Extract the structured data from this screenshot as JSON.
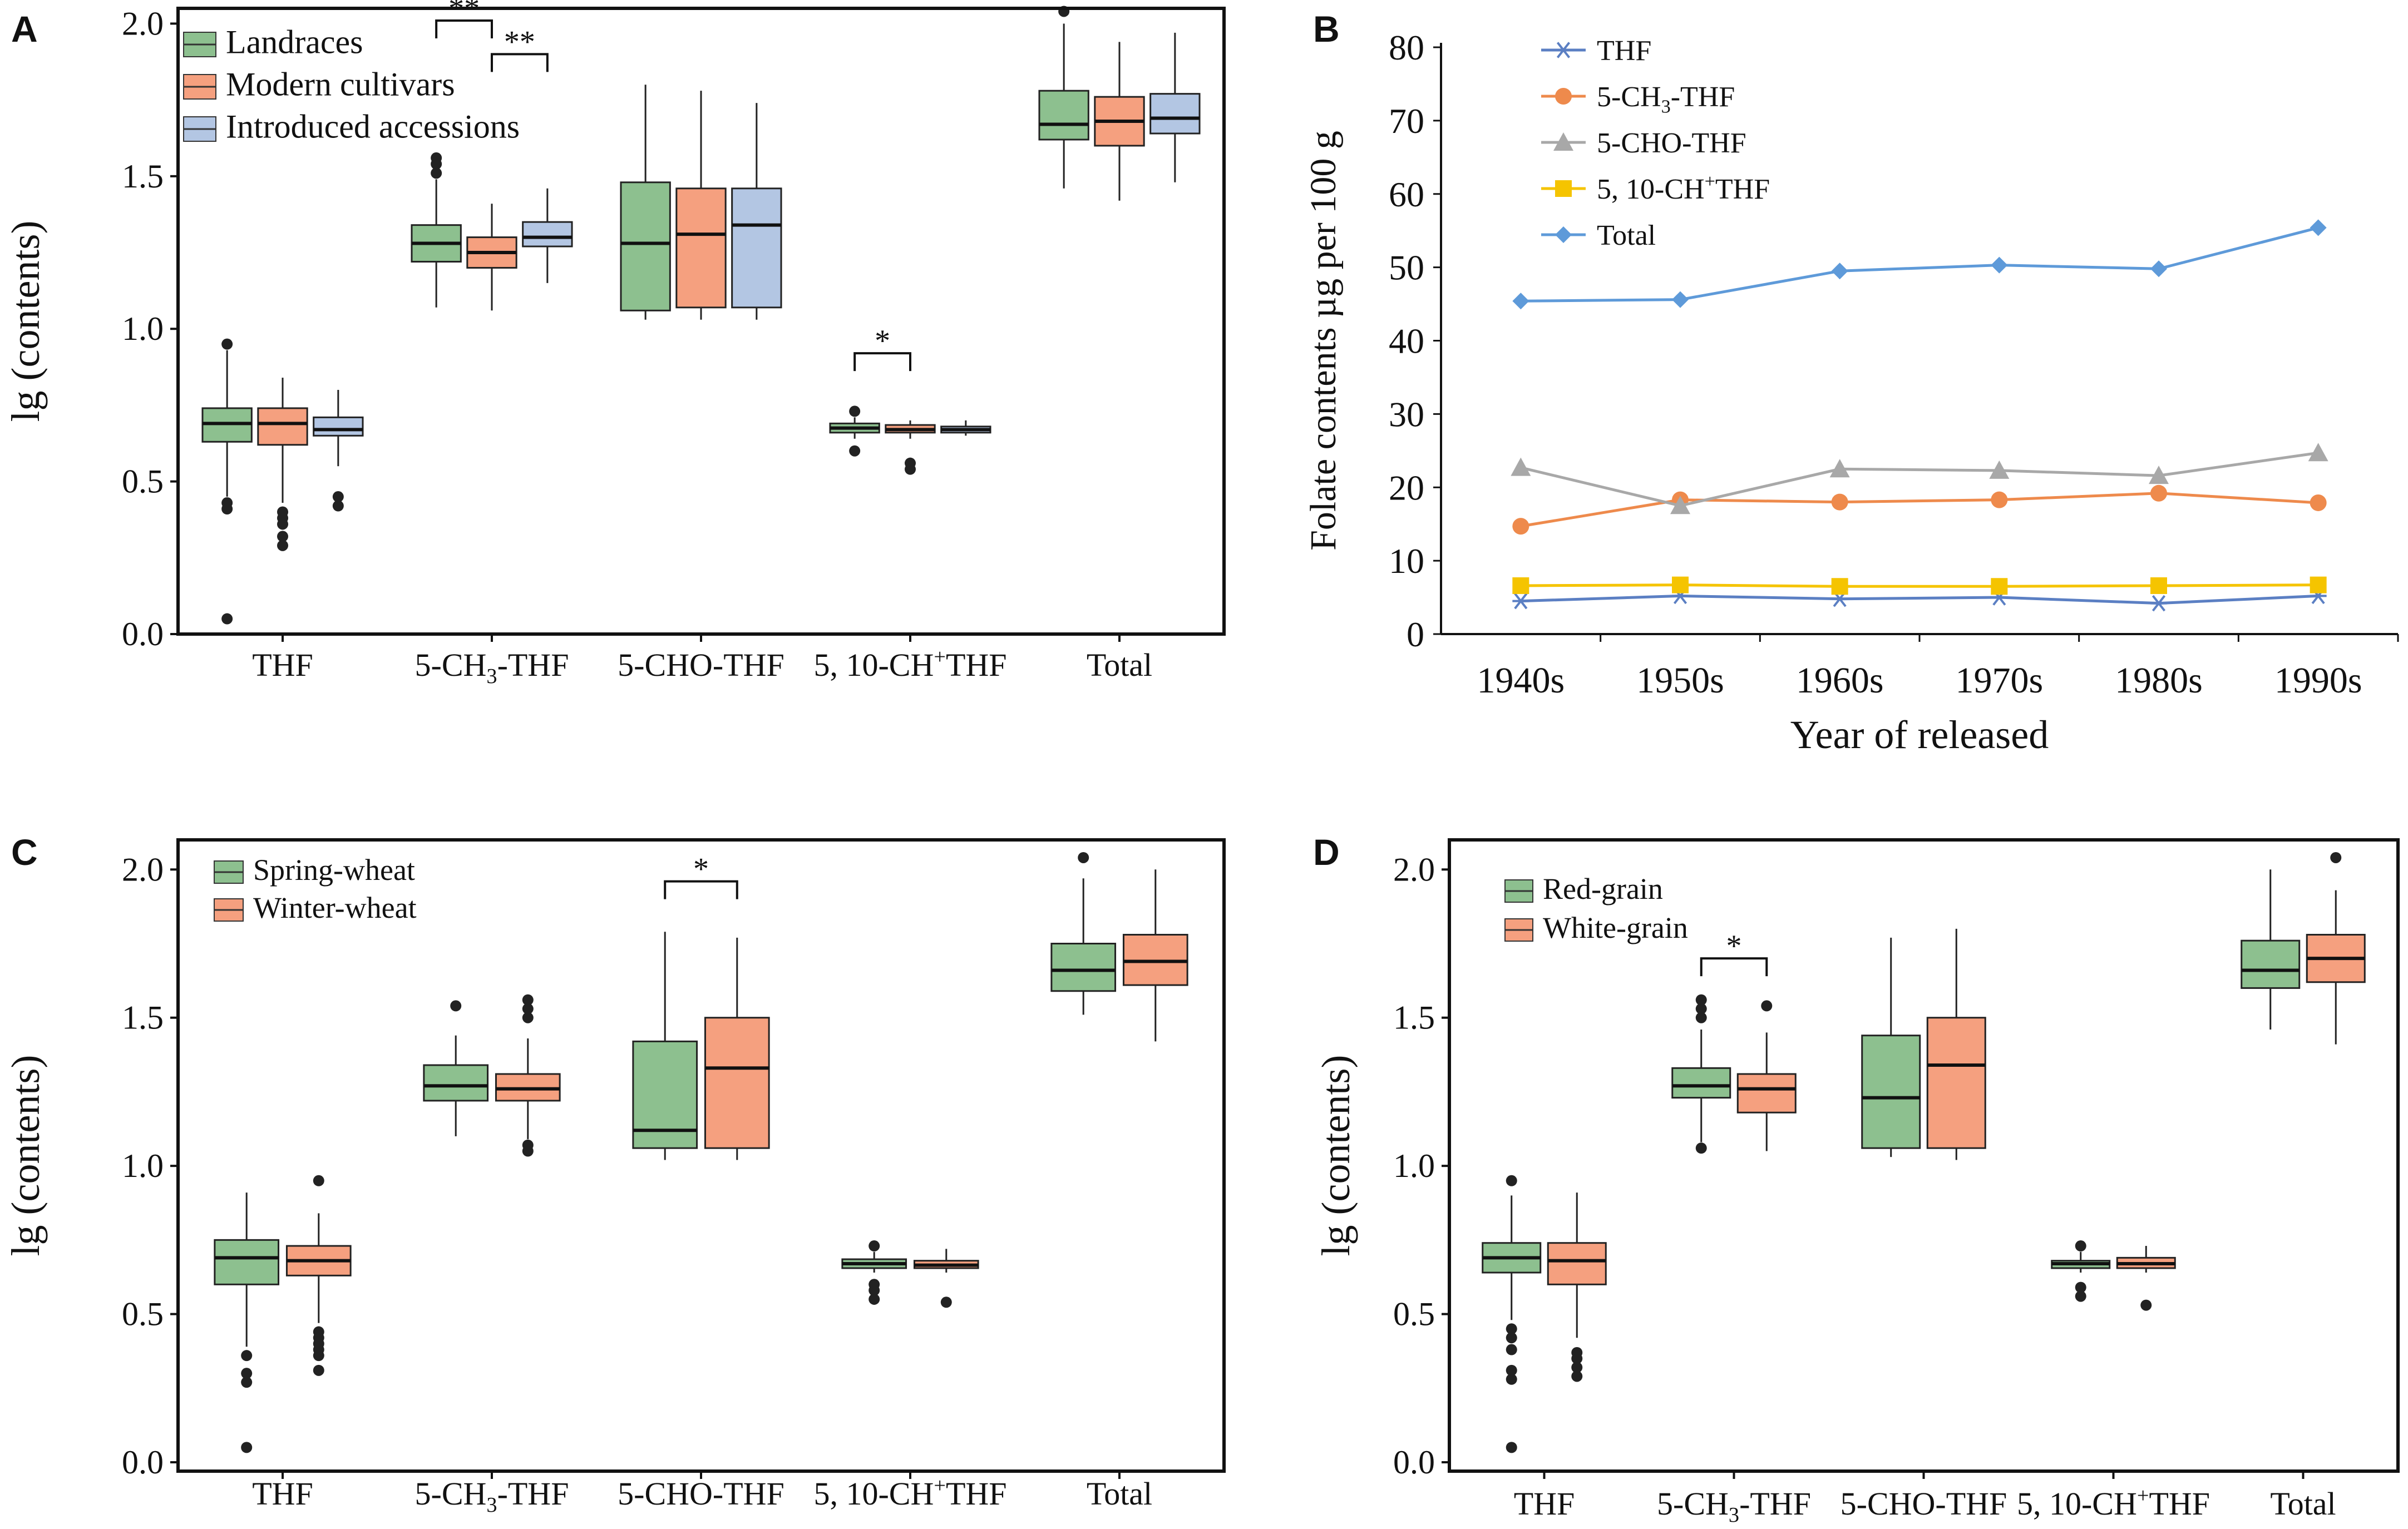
{
  "colors": {
    "green": "#8dc08f",
    "orange": "#f5a07f",
    "blue": "#b3c6e3",
    "axis": "#111111",
    "thf_line": "#5b7fc3",
    "ch3_line": "#ee8a4c",
    "cho_line": "#a8a8a8",
    "ch_plus_line": "#f5c400",
    "total_line": "#5e9ad9"
  },
  "chart_data": [
    {
      "panel": "A",
      "type": "box",
      "ylabel": "lg (contents)",
      "ylim": [
        0.0,
        2.05
      ],
      "yticks": [
        "0.0",
        "0.5",
        "1.0",
        "1.5",
        "2.0"
      ],
      "categories": [
        "THF",
        "5-CH3-THF",
        "5-CHO-THF",
        "5, 10-CH+THF",
        "Total"
      ],
      "legend": [
        {
          "label": "Landraces",
          "color": "green"
        },
        {
          "label": "Modern cultivars",
          "color": "orange"
        },
        {
          "label": "Introduced accessions",
          "color": "blue"
        }
      ],
      "series": [
        {
          "name": "Landraces",
          "color": "green",
          "boxes": [
            {
              "min": 0.45,
              "q1": 0.63,
              "median": 0.69,
              "q3": 0.74,
              "max": 0.93,
              "outliers": [
                0.05,
                0.41,
                0.43,
                0.95
              ]
            },
            {
              "min": 1.07,
              "q1": 1.22,
              "median": 1.28,
              "q3": 1.34,
              "max": 1.49,
              "outliers": [
                1.51,
                1.54,
                1.56
              ]
            },
            {
              "min": 1.03,
              "q1": 1.06,
              "median": 1.28,
              "q3": 1.48,
              "max": 1.8,
              "outliers": []
            },
            {
              "min": 0.64,
              "q1": 0.66,
              "median": 0.675,
              "q3": 0.69,
              "max": 0.71,
              "outliers": [
                0.6,
                0.73
              ]
            },
            {
              "min": 1.46,
              "q1": 1.62,
              "median": 1.67,
              "q3": 1.78,
              "max": 2.0,
              "outliers": [
                2.04
              ]
            }
          ]
        },
        {
          "name": "Modern cultivars",
          "color": "orange",
          "boxes": [
            {
              "min": 0.43,
              "q1": 0.62,
              "median": 0.69,
              "q3": 0.74,
              "max": 0.84,
              "outliers": [
                0.29,
                0.32,
                0.36,
                0.38,
                0.4
              ]
            },
            {
              "min": 1.06,
              "q1": 1.2,
              "median": 1.25,
              "q3": 1.3,
              "max": 1.41,
              "outliers": []
            },
            {
              "min": 1.03,
              "q1": 1.07,
              "median": 1.31,
              "q3": 1.46,
              "max": 1.78,
              "outliers": []
            },
            {
              "min": 0.64,
              "q1": 0.66,
              "median": 0.67,
              "q3": 0.685,
              "max": 0.7,
              "outliers": [
                0.54,
                0.56
              ]
            },
            {
              "min": 1.42,
              "q1": 1.6,
              "median": 1.68,
              "q3": 1.76,
              "max": 1.94,
              "outliers": []
            }
          ]
        },
        {
          "name": "Introduced accessions",
          "color": "blue",
          "boxes": [
            {
              "min": 0.55,
              "q1": 0.65,
              "median": 0.67,
              "q3": 0.71,
              "max": 0.8,
              "outliers": [
                0.42,
                0.45
              ]
            },
            {
              "min": 1.15,
              "q1": 1.27,
              "median": 1.3,
              "q3": 1.35,
              "max": 1.46,
              "outliers": []
            },
            {
              "min": 1.03,
              "q1": 1.07,
              "median": 1.34,
              "q3": 1.46,
              "max": 1.74,
              "outliers": []
            },
            {
              "min": 0.65,
              "q1": 0.66,
              "median": 0.67,
              "q3": 0.68,
              "max": 0.7,
              "outliers": []
            },
            {
              "min": 1.48,
              "q1": 1.64,
              "median": 1.69,
              "q3": 1.77,
              "max": 1.97,
              "outliers": []
            }
          ]
        }
      ],
      "annotations": [
        {
          "text": "**",
          "category": 1,
          "from": 0,
          "to": 1,
          "y": 2.01
        },
        {
          "text": "**",
          "category": 1,
          "from": 1,
          "to": 2,
          "y": 1.9
        },
        {
          "text": "*",
          "category": 3,
          "from": 0,
          "to": 1,
          "y": 0.92
        }
      ]
    },
    {
      "panel": "B",
      "type": "line",
      "title": "",
      "xlabel": "Year of released",
      "ylabel": "Folate contents µg per 100 g",
      "ylim": [
        0,
        80
      ],
      "yticks": [
        "0",
        "10",
        "20",
        "30",
        "40",
        "50",
        "60",
        "70",
        "80"
      ],
      "categories": [
        "1940s",
        "1950s",
        "1960s",
        "1970s",
        "1980s",
        "1990s"
      ],
      "series": [
        {
          "name": "THF",
          "marker": "star",
          "color": "thf_line",
          "values": [
            4.5,
            5.2,
            4.8,
            5.0,
            4.2,
            5.2
          ]
        },
        {
          "name": "5-CH3-THF",
          "marker": "circle",
          "color": "ch3_line",
          "values": [
            14.7,
            18.3,
            18.0,
            18.3,
            19.2,
            17.9
          ]
        },
        {
          "name": "5-CHO-THF",
          "marker": "triangle",
          "color": "cho_line",
          "values": [
            22.7,
            17.5,
            22.5,
            22.3,
            21.6,
            24.7
          ]
        },
        {
          "name": "5, 10-CH+THF",
          "marker": "square",
          "color": "ch_plus_line",
          "values": [
            6.6,
            6.7,
            6.5,
            6.5,
            6.6,
            6.7
          ]
        },
        {
          "name": "Total",
          "marker": "diamond",
          "color": "total_line",
          "values": [
            45.4,
            45.6,
            49.5,
            50.3,
            49.8,
            55.4
          ]
        }
      ]
    },
    {
      "panel": "C",
      "type": "box",
      "ylabel": "lg (contents)",
      "ylim": [
        -0.03,
        2.1
      ],
      "yticks": [
        "0.0",
        "0.5",
        "1.0",
        "1.5",
        "2.0"
      ],
      "categories": [
        "THF",
        "5-CH3-THF",
        "5-CHO-THF",
        "5, 10-CH+THF",
        "Total"
      ],
      "legend": [
        {
          "label": "Spring-wheat",
          "color": "green"
        },
        {
          "label": "Winter-wheat",
          "color": "orange"
        }
      ],
      "series": [
        {
          "name": "Spring-wheat",
          "color": "green",
          "boxes": [
            {
              "min": 0.39,
              "q1": 0.6,
              "median": 0.69,
              "q3": 0.75,
              "max": 0.91,
              "outliers": [
                0.05,
                0.27,
                0.3,
                0.36
              ]
            },
            {
              "min": 1.1,
              "q1": 1.22,
              "median": 1.27,
              "q3": 1.34,
              "max": 1.44,
              "outliers": [
                1.54
              ]
            },
            {
              "min": 1.02,
              "q1": 1.06,
              "median": 1.12,
              "q3": 1.42,
              "max": 1.79,
              "outliers": []
            },
            {
              "min": 0.64,
              "q1": 0.655,
              "median": 0.67,
              "q3": 0.685,
              "max": 0.71,
              "outliers": [
                0.55,
                0.58,
                0.6,
                0.73
              ]
            },
            {
              "min": 1.51,
              "q1": 1.59,
              "median": 1.66,
              "q3": 1.75,
              "max": 1.97,
              "outliers": [
                2.04
              ]
            }
          ]
        },
        {
          "name": "Winter-wheat",
          "color": "orange",
          "boxes": [
            {
              "min": 0.47,
              "q1": 0.63,
              "median": 0.68,
              "q3": 0.73,
              "max": 0.84,
              "outliers": [
                0.31,
                0.36,
                0.38,
                0.4,
                0.42,
                0.44,
                0.95
              ]
            },
            {
              "min": 1.09,
              "q1": 1.22,
              "median": 1.26,
              "q3": 1.31,
              "max": 1.43,
              "outliers": [
                1.05,
                1.07,
                1.5,
                1.53,
                1.56
              ]
            },
            {
              "min": 1.02,
              "q1": 1.06,
              "median": 1.33,
              "q3": 1.5,
              "max": 1.77,
              "outliers": []
            },
            {
              "min": 0.64,
              "q1": 0.655,
              "median": 0.665,
              "q3": 0.68,
              "max": 0.72,
              "outliers": [
                0.54
              ]
            },
            {
              "min": 1.42,
              "q1": 1.61,
              "median": 1.69,
              "q3": 1.78,
              "max": 2.0,
              "outliers": []
            }
          ]
        }
      ],
      "annotations": [
        {
          "text": "*",
          "category": 2,
          "from": 0,
          "to": 1,
          "y": 1.96
        }
      ]
    },
    {
      "panel": "D",
      "type": "box",
      "ylabel": "lg (contents)",
      "ylim": [
        -0.03,
        2.1
      ],
      "yticks": [
        "0.0",
        "0.5",
        "1.0",
        "1.5",
        "2.0"
      ],
      "categories": [
        "THF",
        "5-CH3-THF",
        "5-CHO-THF",
        "5, 10-CH+THF",
        "Total"
      ],
      "legend": [
        {
          "label": "Red-grain",
          "color": "green"
        },
        {
          "label": "White-grain",
          "color": "orange"
        }
      ],
      "series": [
        {
          "name": "Red-grain",
          "color": "green",
          "boxes": [
            {
              "min": 0.48,
              "q1": 0.64,
              "median": 0.69,
              "q3": 0.74,
              "max": 0.9,
              "outliers": [
                0.05,
                0.28,
                0.31,
                0.38,
                0.42,
                0.45,
                0.95
              ]
            },
            {
              "min": 1.08,
              "q1": 1.23,
              "median": 1.27,
              "q3": 1.33,
              "max": 1.46,
              "outliers": [
                1.06,
                1.5,
                1.53,
                1.56
              ]
            },
            {
              "min": 1.03,
              "q1": 1.06,
              "median": 1.23,
              "q3": 1.44,
              "max": 1.77,
              "outliers": []
            },
            {
              "min": 0.64,
              "q1": 0.655,
              "median": 0.67,
              "q3": 0.68,
              "max": 0.71,
              "outliers": [
                0.56,
                0.59,
                0.73
              ]
            },
            {
              "min": 1.46,
              "q1": 1.6,
              "median": 1.66,
              "q3": 1.76,
              "max": 2.0,
              "outliers": []
            }
          ]
        },
        {
          "name": "White-grain",
          "color": "orange",
          "boxes": [
            {
              "min": 0.42,
              "q1": 0.6,
              "median": 0.68,
              "q3": 0.74,
              "max": 0.91,
              "outliers": [
                0.29,
                0.32,
                0.35,
                0.37
              ]
            },
            {
              "min": 1.05,
              "q1": 1.18,
              "median": 1.26,
              "q3": 1.31,
              "max": 1.45,
              "outliers": [
                1.54
              ]
            },
            {
              "min": 1.02,
              "q1": 1.06,
              "median": 1.34,
              "q3": 1.5,
              "max": 1.8,
              "outliers": []
            },
            {
              "min": 0.64,
              "q1": 0.655,
              "median": 0.67,
              "q3": 0.69,
              "max": 0.73,
              "outliers": [
                0.53
              ]
            },
            {
              "min": 1.41,
              "q1": 1.62,
              "median": 1.7,
              "q3": 1.78,
              "max": 1.93,
              "outliers": [
                2.04
              ]
            }
          ]
        }
      ],
      "annotations": [
        {
          "text": "*",
          "category": 1,
          "from": 0,
          "to": 1,
          "y": 1.7
        }
      ]
    }
  ]
}
